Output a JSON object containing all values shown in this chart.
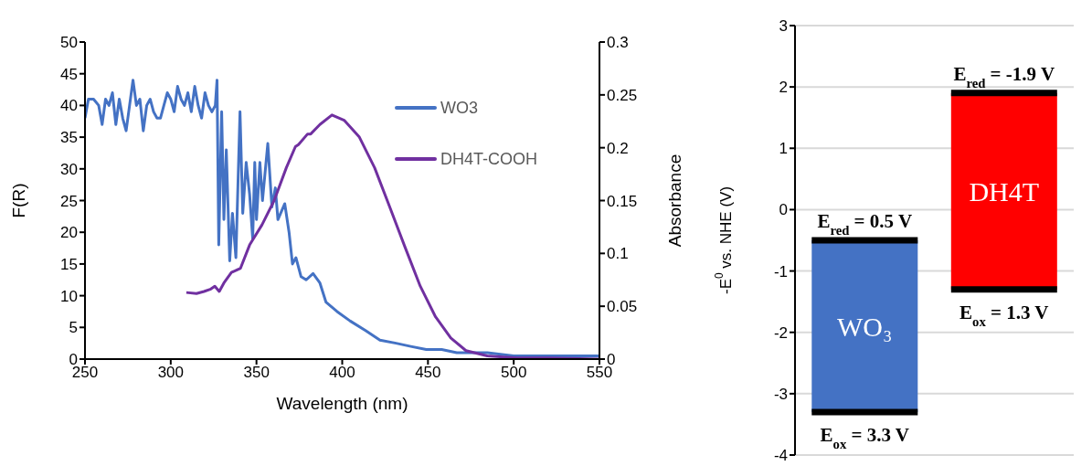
{
  "chart_data": [
    {
      "type": "line",
      "xlabel": "Wavelength (nm)",
      "ylabel": "F(R)",
      "y2label": "Absorbance",
      "xlim": [
        250,
        550
      ],
      "xticks": [
        250,
        300,
        350,
        400,
        450,
        500,
        550
      ],
      "ylim": [
        0,
        50
      ],
      "yticks": [
        0,
        5,
        10,
        15,
        20,
        25,
        30,
        35,
        40,
        45,
        50
      ],
      "y2lim": [
        0,
        0.3
      ],
      "y2ticks": [
        0,
        0.05,
        0.1,
        0.15,
        0.2,
        0.25,
        0.3
      ],
      "legend": "top right",
      "marker": "none",
      "line_style": "solid",
      "series": [
        {
          "name": "WO3",
          "color": "#4472c4",
          "x": [
            250,
            252,
            255,
            258,
            260,
            262,
            264,
            266,
            268,
            270,
            272,
            274,
            276,
            278,
            280,
            282,
            284,
            286,
            288,
            290,
            292,
            294,
            296,
            298,
            300,
            302,
            304,
            306,
            308,
            310,
            312,
            314,
            316,
            318,
            320,
            322,
            324,
            326,
            327,
            328,
            329.7,
            331,
            332.4,
            334.4,
            336,
            338,
            340.4,
            342,
            344,
            346,
            347.8,
            349,
            350,
            352,
            353.5,
            356.6,
            359,
            361,
            362.5,
            366.5,
            369,
            371,
            373,
            376,
            379,
            383,
            387,
            390.5,
            397,
            404.7,
            413.6,
            422,
            431.4,
            440,
            449,
            458,
            466.8,
            475,
            484.6,
            500,
            520,
            535,
            550
          ],
          "values": [
            38,
            41,
            41,
            40,
            37,
            41,
            40,
            42,
            37,
            41,
            38,
            36,
            40,
            44,
            40,
            41,
            36,
            40,
            41,
            39,
            38,
            38,
            40,
            42,
            41,
            39,
            43,
            41,
            40,
            42,
            39,
            43,
            40,
            38,
            42,
            40,
            39,
            40,
            44,
            18,
            39,
            22,
            33,
            15.5,
            23,
            16,
            39,
            23,
            31,
            26,
            19,
            31,
            22,
            31,
            25,
            34,
            24,
            27,
            22,
            24.5,
            20,
            15,
            16,
            13,
            12.5,
            13.5,
            12,
            9,
            7.5,
            6,
            4.5,
            3,
            2.5,
            2,
            1.5,
            1.5,
            1,
            1,
            1,
            0.5,
            0.5,
            0.5,
            0.5
          ]
        },
        {
          "name": "DH4T-COOH",
          "color": "#7030a0",
          "axis": "y2",
          "x": [
            309.1,
            315,
            319.4,
            323,
            325.7,
            328.3,
            331,
            335.4,
            340.7,
            346,
            353.2,
            360.3,
            367.4,
            372.7,
            374.5,
            379.8,
            381.6,
            387,
            394,
            401.1,
            410,
            418.9,
            427.7,
            436.6,
            445.5,
            454.4,
            463.3,
            472.2,
            484.6,
            502,
            520,
            550
          ],
          "values": [
            0.063,
            0.062,
            0.064,
            0.066,
            0.069,
            0.064,
            0.072,
            0.082,
            0.086,
            0.108,
            0.127,
            0.15,
            0.181,
            0.201,
            0.203,
            0.213,
            0.213,
            0.222,
            0.231,
            0.226,
            0.21,
            0.181,
            0.144,
            0.106,
            0.069,
            0.04,
            0.02,
            0.008,
            0.003,
            0.001,
            0.001,
            0
          ]
        }
      ]
    },
    {
      "type": "bar",
      "ylabel": "-E$^{0}$ vs. NHE (V)",
      "categories": [
        null,
        null
      ],
      "values": [
        2.8,
        3.2
      ],
      "base": [
        -3.3,
        -1.3
      ],
      "colors": [
        "#4472c4",
        "#ff0000"
      ],
      "ylim": [
        -4,
        3
      ],
      "yticks": [
        -4,
        -3,
        -2,
        -1,
        0,
        1,
        2,
        3
      ],
      "grid": "y",
      "annotations": [
        {
          "text": "E$_{red}$ = 0.5 V",
          "y": -0.5
        },
        {
          "text": "E$_{ox}$ = 3.3 V",
          "y": -3.3
        },
        {
          "text": "E$_{red}$ = -1.9 V",
          "y": 1.9
        },
        {
          "text": "E$_{ox}$ = 1.3 V",
          "y": -1.3
        },
        "WO₃",
        "DH4T"
      ]
    }
  ]
}
